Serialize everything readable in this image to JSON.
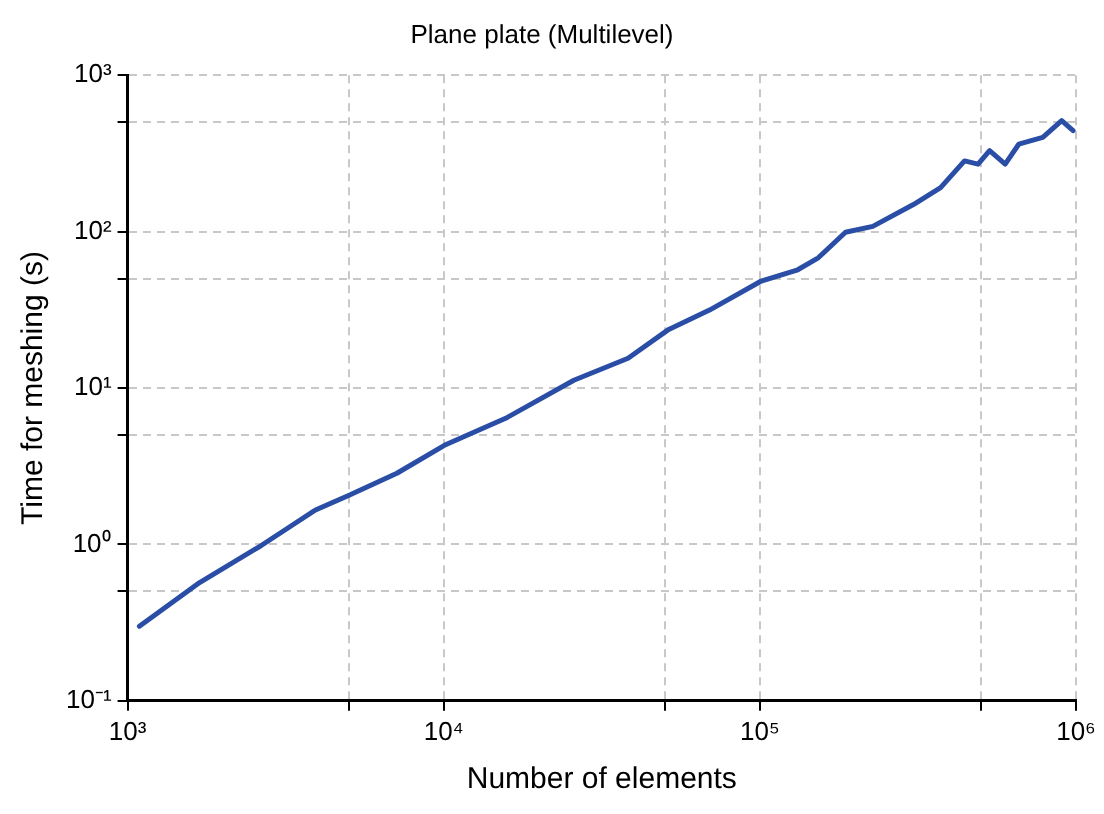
{
  "chart_data": {
    "type": "line",
    "title": "Plane plate (Multilevel)",
    "xlabel": "Number of elements",
    "ylabel": "Time for meshing (s)",
    "log": "xy",
    "grid": true,
    "legend": false,
    "marker": "none",
    "line_style": "solid",
    "xlim": [
      1000,
      1000000
    ],
    "ylim": [
      0.1,
      1000
    ],
    "xticks": [
      {
        "value": 1000,
        "label": "10³"
      },
      {
        "value": 5000,
        "label": null
      },
      {
        "value": 10000,
        "label": "10⁴"
      },
      {
        "value": 50000,
        "label": null
      },
      {
        "value": 100000,
        "label": "10⁵"
      },
      {
        "value": 500000,
        "label": null
      },
      {
        "value": 1000000,
        "label": "10⁶"
      }
    ],
    "yticks": [
      {
        "value": 0.1,
        "label": "10⁻¹"
      },
      {
        "value": 0.5,
        "label": null
      },
      {
        "value": 1,
        "label": "10⁰"
      },
      {
        "value": 5,
        "label": null
      },
      {
        "value": 10,
        "label": "10¹"
      },
      {
        "value": 50,
        "label": null
      },
      {
        "value": 100,
        "label": "10²"
      },
      {
        "value": 500,
        "label": null
      },
      {
        "value": 1000,
        "label": "10³"
      }
    ],
    "series": [
      {
        "color": "#2a4ea6",
        "x": [
          1090,
          1690,
          2640,
          3930,
          5020,
          7110,
          10050,
          15700,
          25800,
          38300,
          51500,
          69300,
          100400,
          131800,
          153000,
          186600,
          227600,
          306000,
          373000,
          444000,
          490000,
          533000,
          597000,
          659000,
          785000,
          901000,
          979000
        ],
        "values": [
          0.3,
          0.57,
          0.98,
          1.66,
          2.06,
          2.85,
          4.3,
          6.4,
          11.2,
          15.5,
          23.7,
          31.5,
          48,
          57,
          68,
          99,
          108,
          149,
          191,
          283,
          270,
          329,
          270,
          362,
          400,
          512,
          442
        ]
      }
    ]
  }
}
